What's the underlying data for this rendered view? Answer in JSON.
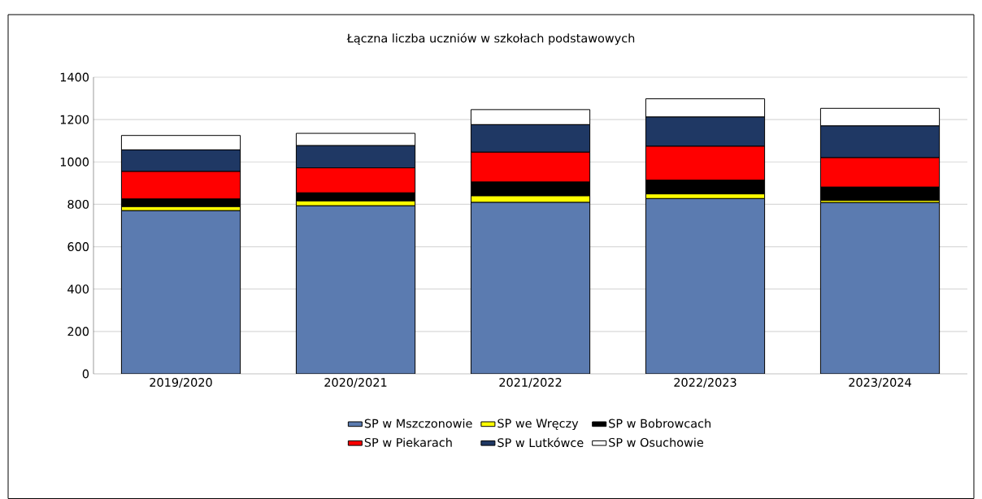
{
  "chart_data": {
    "type": "bar",
    "stacked": true,
    "title": "Łączna liczba uczniów w szkołach podstawowych",
    "categories": [
      "2019/2020",
      "2020/2021",
      "2021/2022",
      "2022/2023",
      "2023/2024"
    ],
    "series": [
      {
        "name": "SP  w Mszczonowie",
        "color": "#5b7bb0",
        "values": [
          770,
          793,
          809,
          827,
          808
        ]
      },
      {
        "name": "SP  we Wręczy",
        "color": "#ffff00",
        "values": [
          19,
          23,
          31,
          22,
          10
        ]
      },
      {
        "name": "SP  w Bobrowcach",
        "color": "#000000",
        "values": [
          36,
          38,
          65,
          65,
          63
        ]
      },
      {
        "name": "SP  w Piekarach",
        "color": "#ff0000",
        "values": [
          130,
          118,
          141,
          160,
          139
        ]
      },
      {
        "name": "SP  w Lutkówce",
        "color": "#1f3864",
        "values": [
          102,
          105,
          130,
          138,
          150
        ]
      },
      {
        "name": "SP   w Osuchowie",
        "color": "#ffffff",
        "values": [
          68,
          58,
          71,
          86,
          83
        ]
      }
    ],
    "ylim": [
      0,
      1400
    ],
    "yticks": [
      0,
      200,
      400,
      600,
      800,
      1000,
      1200,
      1400
    ],
    "grid": "y",
    "legend": "bottom"
  }
}
